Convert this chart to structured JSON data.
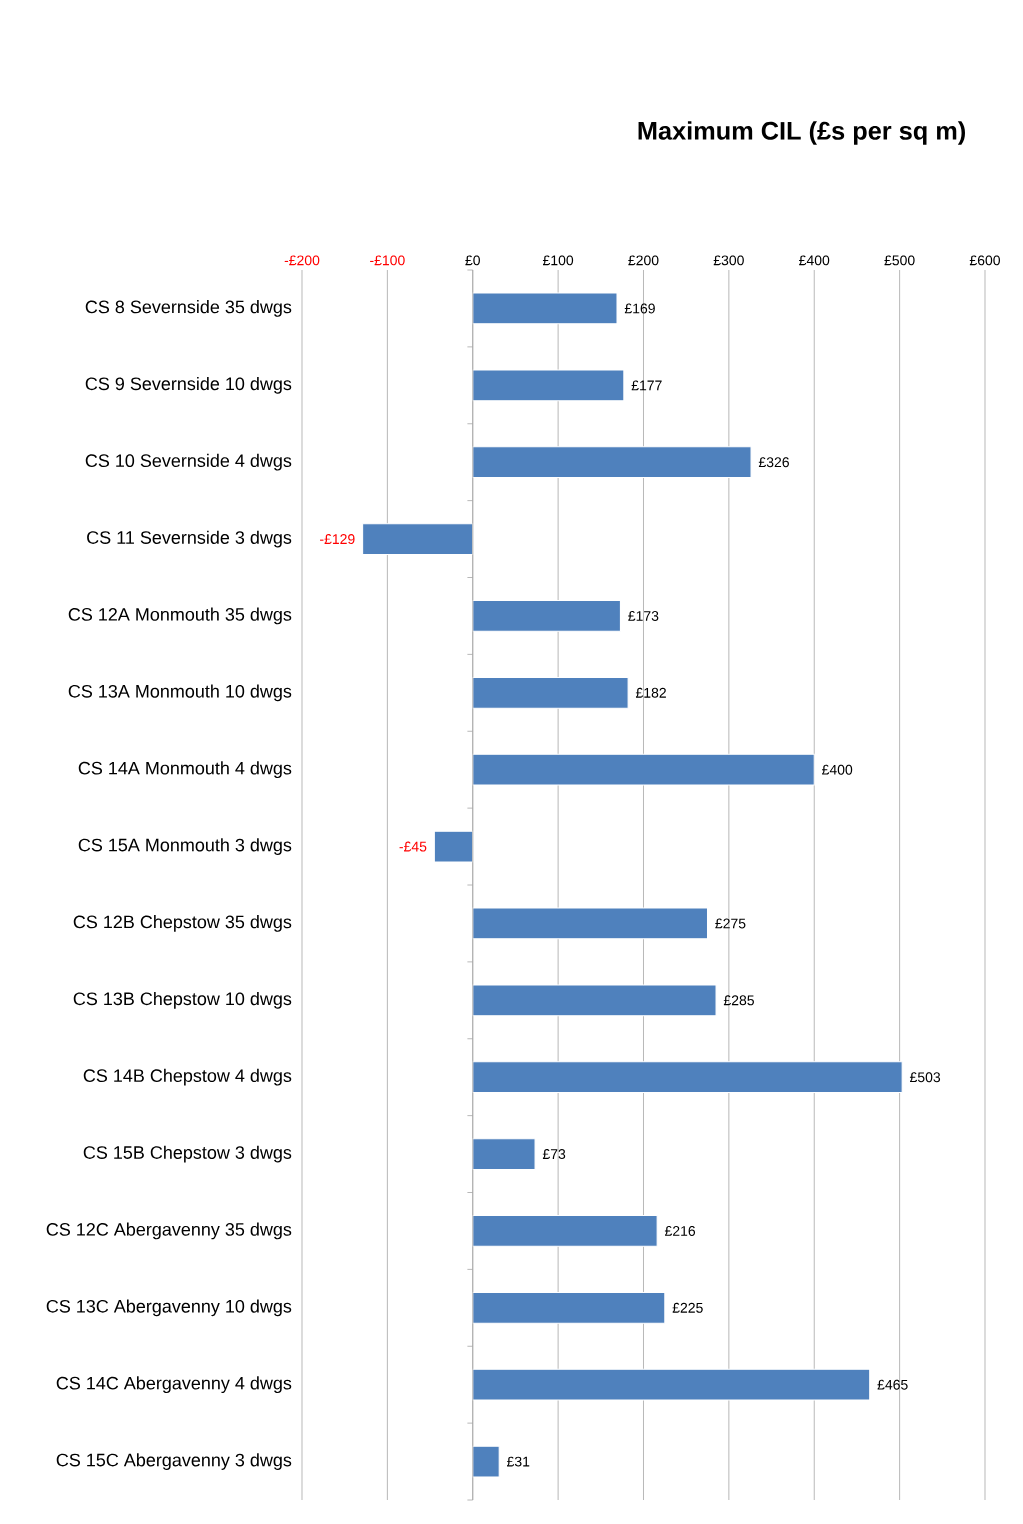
{
  "chart_data": {
    "type": "bar",
    "orientation": "horizontal",
    "title": "Maximum CIL (£s per sq m)",
    "categories": [
      "CS 8 Severnside 35 dwgs",
      "CS 9 Severnside 10 dwgs",
      "CS 10 Severnside 4 dwgs",
      "CS 11 Severnside 3 dwgs",
      "CS 12A Monmouth  35 dwgs",
      "CS 13A Monmouth  10 dwgs",
      "CS 14A Monmouth  4 dwgs",
      "CS 15A Monmouth 3 dwgs",
      "CS 12B Chepstow 35 dwgs",
      "CS 13B Chepstow 10 dwgs",
      "CS 14B Chepstow 4 dwgs",
      "CS 15B Chepstow 3 dwgs",
      "CS 12C Abergavenny 35 dwgs",
      "CS 13C Abergavenny 10 dwgs",
      "CS 14C Abergavenny 4 dwgs",
      "CS 15C Abergavenny 3 dwgs"
    ],
    "values": [
      169,
      177,
      326,
      -129,
      173,
      182,
      400,
      -45,
      275,
      285,
      503,
      73,
      216,
      225,
      465,
      31
    ],
    "value_labels": [
      "£169",
      "£177",
      "£326",
      "-£129",
      "£173",
      "£182",
      "£400",
      "-£45",
      "£275",
      "£285",
      "£503",
      "£73",
      "£216",
      "£225",
      "£465",
      "£31"
    ],
    "color": "#4f81bd",
    "xlim": [
      -200,
      600
    ],
    "xticks": [
      {
        "value": -200,
        "label": "-£200"
      },
      {
        "value": -100,
        "label": "-£100"
      },
      {
        "value": 0,
        "label": "£0"
      },
      {
        "value": 100,
        "label": "£100"
      },
      {
        "value": 200,
        "label": "£200"
      },
      {
        "value": 300,
        "label": "£300"
      },
      {
        "value": 400,
        "label": "£400"
      },
      {
        "value": 500,
        "label": "£500"
      },
      {
        "value": 600,
        "label": "£600"
      }
    ],
    "grid": "x"
  }
}
